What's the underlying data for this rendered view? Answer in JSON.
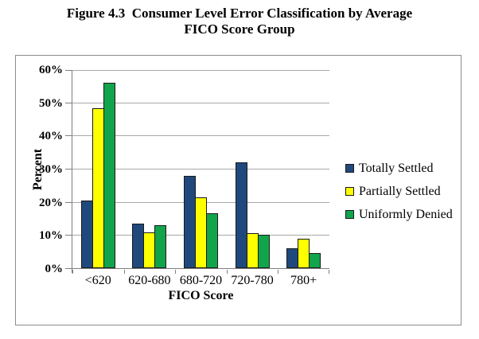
{
  "title": {
    "lines": [
      "Figure 4.3  Consumer Level Error Classification by Average",
      "FICO Score Group"
    ]
  },
  "chart_data": {
    "type": "bar",
    "title": "Figure 4.3 Consumer Level Error Classification by Average FICO Score Group",
    "categories": [
      "<620",
      "620-680",
      "680-720",
      "720-780",
      "780+"
    ],
    "series": [
      {
        "name": "Totally Settled",
        "color": "#1F497D",
        "values": [
          20.5,
          13.4,
          27.8,
          32.0,
          6.1
        ]
      },
      {
        "name": "Partially Settled",
        "color": "#FFFF00",
        "values": [
          48.2,
          10.7,
          21.4,
          10.6,
          8.9
        ]
      },
      {
        "name": "Uniformly Denied",
        "color": "#12A44B",
        "values": [
          56.0,
          12.9,
          16.5,
          10.1,
          4.5
        ]
      }
    ],
    "xlabel": "FICO Score",
    "ylabel": "Percent",
    "ylim": [
      0,
      60
    ],
    "ytick_step": 10,
    "ytick_suffix": "%",
    "grid": true,
    "legend_position": "right",
    "colors": {
      "bar_border": "#1a1a1a",
      "gridline": "#a8a8a8",
      "axis": "#7f7f7f",
      "frame_border": "#8c8c8c"
    }
  }
}
